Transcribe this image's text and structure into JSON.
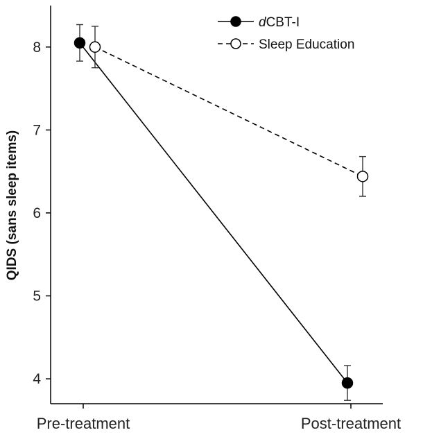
{
  "chart_data": {
    "type": "line",
    "categories": [
      "Pre-treatment",
      "Post-treatment"
    ],
    "ylabel": "QIDS (sans sleep items)",
    "xlabel": "",
    "ylim": [
      3.7,
      8.5
    ],
    "yticks": [
      4,
      5,
      6,
      7,
      8
    ],
    "grid": false,
    "legend_position": "top-right",
    "series": [
      {
        "name_prefix": "d",
        "name_rest": "CBT-I",
        "values": [
          8.05,
          3.95
        ],
        "error": [
          0.22,
          0.21
        ],
        "marker": "filled-circle",
        "line_style": "solid",
        "color": "#000000"
      },
      {
        "name": "Sleep Education",
        "values": [
          8.0,
          6.44
        ],
        "error": [
          0.25,
          0.24
        ],
        "marker": "open-circle",
        "line_style": "dashed",
        "color": "#000000"
      }
    ]
  }
}
